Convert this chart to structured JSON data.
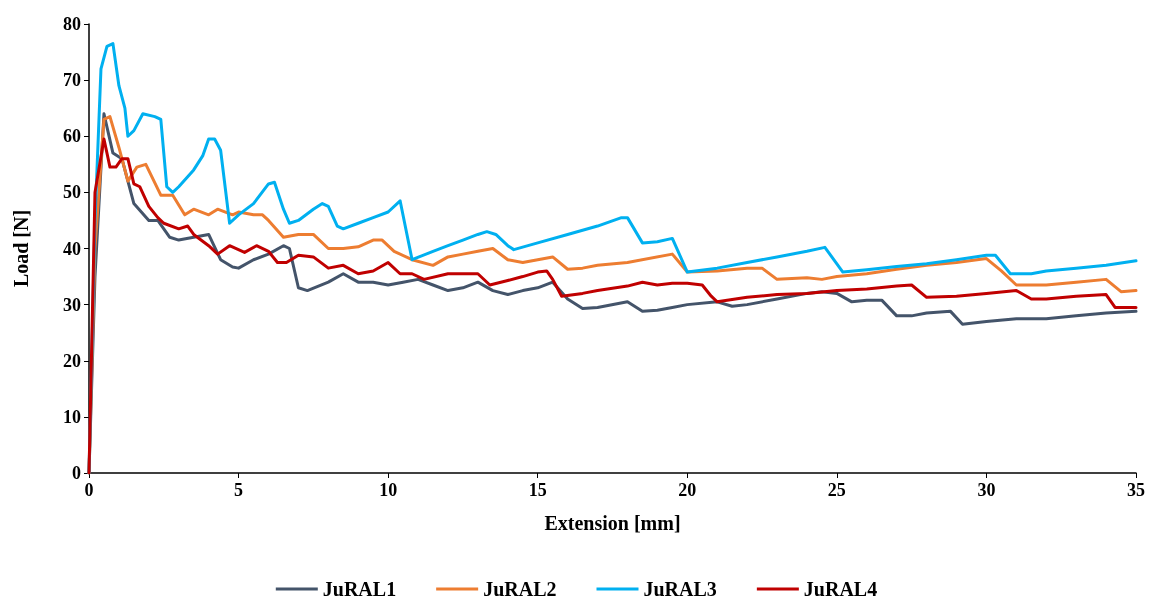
{
  "chart_data": {
    "type": "line",
    "xlabel": "Extension [mm]",
    "ylabel": "Load [N]",
    "xlim": [
      0,
      35
    ],
    "xticks": [
      0,
      5,
      10,
      15,
      20,
      25,
      30,
      35
    ],
    "ylim": [
      0,
      80
    ],
    "yticks": [
      0,
      10,
      20,
      30,
      40,
      50,
      60,
      70,
      80
    ],
    "grid": false,
    "legend": "bottom",
    "marker": "none",
    "line_style": "solid",
    "series": [
      {
        "name": "JuRAL1",
        "color": "#44546a",
        "x": [
          0,
          0.2,
          0.5,
          0.8,
          1.1,
          1.5,
          2,
          2.3,
          2.7,
          3,
          3.5,
          4,
          4.4,
          4.8,
          5,
          5.5,
          6,
          6.5,
          6.7,
          7,
          7.3,
          8,
          8.5,
          9,
          9.5,
          10,
          10.5,
          11,
          11.5,
          12,
          12.5,
          13,
          13.5,
          14,
          14.5,
          15,
          15.5,
          16,
          16.5,
          17,
          18,
          18.5,
          19,
          19.5,
          20,
          21,
          21.5,
          22,
          23,
          24,
          24.5,
          25,
          25.5,
          26,
          26.5,
          27,
          27.5,
          28,
          28.8,
          29.2,
          30,
          31,
          32,
          33,
          34,
          35
        ],
        "values": [
          0,
          35,
          64,
          57,
          56,
          48,
          45,
          45,
          42,
          41.5,
          42,
          42.5,
          38,
          36.7,
          36.5,
          38,
          39,
          40.5,
          40,
          33,
          32.5,
          34,
          35.5,
          34,
          34,
          33.5,
          34,
          34.5,
          33.5,
          32.5,
          33,
          34,
          32.5,
          31.8,
          32.5,
          33,
          34,
          31,
          29.3,
          29.5,
          30.5,
          28.8,
          29,
          29.5,
          30,
          30.5,
          29.7,
          30,
          31,
          32,
          32.3,
          32,
          30.5,
          30.8,
          30.8,
          28,
          28,
          28.5,
          28.8,
          26.5,
          27,
          27.5,
          27.5,
          28,
          28.5,
          28.8
        ]
      },
      {
        "name": "JuRAL2",
        "color": "#ed7d31",
        "x": [
          0,
          0.2,
          0.5,
          0.7,
          1,
          1.3,
          1.6,
          1.9,
          2.4,
          2.8,
          3.2,
          3.5,
          4,
          4.3,
          4.8,
          5,
          5.5,
          5.8,
          6,
          6.5,
          7,
          7.5,
          8,
          8.5,
          9,
          9.5,
          9.8,
          10.2,
          10.8,
          11.5,
          12,
          12.5,
          13,
          13.5,
          14,
          14.5,
          15,
          15.5,
          16,
          16.5,
          17,
          18,
          19.5,
          20,
          21,
          22,
          22.5,
          23,
          24,
          24.5,
          25,
          26,
          27,
          28,
          29,
          30,
          30.5,
          31,
          32,
          33,
          34,
          34.5,
          35
        ],
        "values": [
          0,
          40,
          63,
          63.5,
          58,
          52,
          54.5,
          55,
          49.5,
          49.5,
          46,
          47,
          46,
          47,
          46,
          46.5,
          46,
          46,
          45,
          42,
          42.5,
          42.5,
          40,
          40,
          40.3,
          41.5,
          41.5,
          39.5,
          38,
          37,
          38.5,
          39,
          39.5,
          40,
          38,
          37.5,
          38,
          38.5,
          36.3,
          36.5,
          37,
          37.5,
          39,
          35.8,
          36,
          36.5,
          36.5,
          34.5,
          34.8,
          34.5,
          35,
          35.5,
          36.3,
          37,
          37.5,
          38.2,
          36,
          33.5,
          33.5,
          34,
          34.5,
          32.3,
          32.5
        ]
      },
      {
        "name": "JuRAL3",
        "color": "#00b0f0",
        "x": [
          0,
          0.2,
          0.4,
          0.6,
          0.8,
          1,
          1.2,
          1.3,
          1.5,
          1.8,
          2.2,
          2.4,
          2.6,
          2.8,
          3,
          3.5,
          3.8,
          4,
          4.2,
          4.4,
          4.7,
          5,
          5.5,
          6,
          6.2,
          6.5,
          6.7,
          7,
          7.5,
          7.8,
          8,
          8.3,
          8.5,
          9,
          9.5,
          10,
          10.4,
          10.8,
          11.5,
          12,
          12.5,
          13,
          13.3,
          13.6,
          14,
          14.2,
          15,
          16,
          17,
          17.8,
          18,
          18.5,
          19,
          19.5,
          20,
          21,
          22,
          23,
          24,
          24.6,
          25.2,
          26,
          27,
          28,
          29,
          30,
          30.3,
          30.8,
          31.5,
          32,
          33,
          34,
          35
        ],
        "values": [
          0,
          45,
          72,
          76,
          76.5,
          69,
          65,
          60,
          61,
          64,
          63.5,
          63,
          51,
          50,
          51,
          54,
          56.5,
          59.5,
          59.5,
          57.5,
          44.5,
          46,
          48,
          51.5,
          51.8,
          47,
          44.5,
          45,
          47,
          48,
          47.5,
          44,
          43.5,
          44.5,
          45.5,
          46.5,
          48.5,
          38,
          39.5,
          40.5,
          41.5,
          42.5,
          43,
          42.5,
          40.5,
          39.8,
          41,
          42.5,
          44,
          45.5,
          45.5,
          41,
          41.2,
          41.8,
          35.8,
          36.5,
          37.5,
          38.5,
          39.5,
          40.2,
          35.8,
          36.2,
          36.8,
          37.3,
          38,
          38.8,
          38.8,
          35.5,
          35.5,
          36,
          36.5,
          37,
          37.8
        ]
      },
      {
        "name": "JuRAL4",
        "color": "#c00000",
        "x": [
          0,
          0.2,
          0.5,
          0.7,
          0.9,
          1.1,
          1.3,
          1.5,
          1.7,
          2,
          2.3,
          2.5,
          3,
          3.3,
          3.5,
          4,
          4.3,
          4.7,
          5.2,
          5.6,
          6,
          6.3,
          6.6,
          7,
          7.5,
          8,
          8.5,
          9,
          9.5,
          10,
          10.4,
          10.8,
          11.2,
          12,
          13,
          13.4,
          14,
          14.5,
          15,
          15.3,
          15.5,
          15.8,
          16.5,
          17,
          18,
          18.5,
          19,
          19.5,
          20,
          20.5,
          20.8,
          21,
          22,
          23,
          24,
          25,
          26,
          27,
          27.5,
          28,
          29,
          30,
          31,
          31.5,
          32,
          33,
          34,
          34.3,
          35
        ],
        "values": [
          0,
          50,
          59.5,
          54.5,
          54.5,
          56,
          56,
          51.5,
          51,
          47.5,
          45.5,
          44.5,
          43.5,
          44,
          42.5,
          40.5,
          39,
          40.5,
          39.3,
          40.5,
          39.5,
          37.5,
          37.5,
          38.8,
          38.5,
          36.5,
          37,
          35.5,
          36,
          37.5,
          35.5,
          35.5,
          34.5,
          35.5,
          35.5,
          33.5,
          34.3,
          35,
          35.8,
          36,
          34.5,
          31.5,
          32,
          32.5,
          33.3,
          34,
          33.5,
          33.8,
          33.8,
          33.5,
          31.5,
          30.5,
          31.3,
          31.8,
          32,
          32.5,
          32.8,
          33.3,
          33.5,
          31.3,
          31.5,
          32,
          32.5,
          31,
          31,
          31.5,
          31.8,
          29.5,
          29.5
        ]
      }
    ]
  }
}
